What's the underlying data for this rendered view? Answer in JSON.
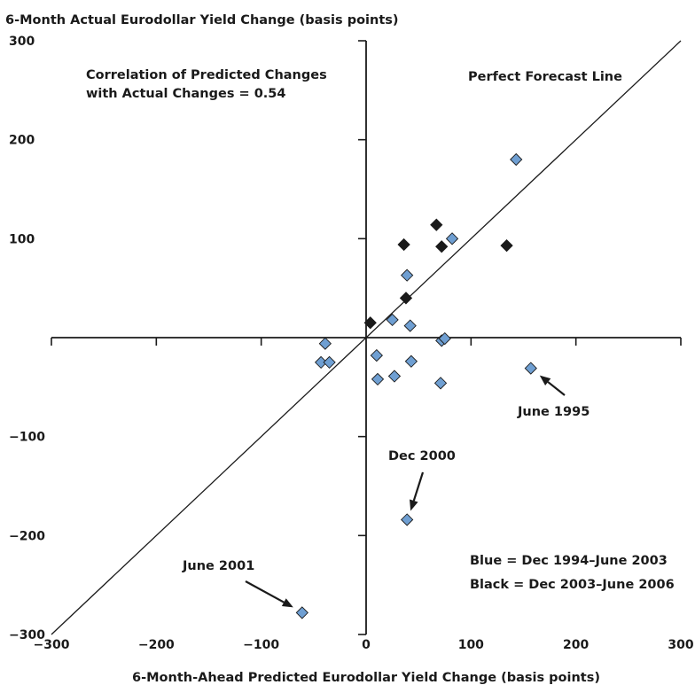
{
  "chart_data": {
    "type": "scatter",
    "title": "",
    "ylabel": "6-Month Actual Eurodollar Yield Change (basis points)",
    "xlabel": "6-Month-Ahead Predicted Eurodollar Yield Change (basis points)",
    "xlim": [
      -300,
      300
    ],
    "ylim": [
      -300,
      300
    ],
    "x_ticks": [
      "−300",
      "−200",
      "−100",
      "0",
      "100",
      "200",
      "300"
    ],
    "y_ticks": [
      "300",
      "200",
      "100",
      "−100",
      "−200",
      "−300"
    ],
    "grid": false,
    "reference_line": {
      "label": "Perfect Forecast Line",
      "slope": 1,
      "intercept": 0
    },
    "annotations": {
      "correlation_line1": "Correlation of Predicted Changes",
      "correlation_line2": "with Actual Changes = 0.54",
      "legend_blue": "Blue = Dec 1994–June 2003",
      "legend_black": "Black = Dec 2003–June 2006",
      "june_1995": "June 1995",
      "dec_2000": "Dec 2000",
      "june_2001": "June 2001"
    },
    "series": [
      {
        "color": "#6f9fd2",
        "points": [
          [
            143,
            180
          ],
          [
            82,
            100
          ],
          [
            39,
            63
          ],
          [
            25,
            18
          ],
          [
            42,
            12
          ],
          [
            72,
            -3
          ],
          [
            75,
            -1
          ],
          [
            -39,
            -6
          ],
          [
            -43,
            -25
          ],
          [
            -35,
            -25
          ],
          [
            10,
            -18
          ],
          [
            11,
            -42
          ],
          [
            27,
            -39
          ],
          [
            43,
            -24
          ],
          [
            71,
            -46
          ],
          [
            157,
            -31
          ],
          [
            39,
            -184
          ],
          [
            -61,
            -278
          ]
        ]
      },
      {
        "color": "#1a1a1a",
        "points": [
          [
            36,
            94
          ],
          [
            67,
            114
          ],
          [
            72,
            92
          ],
          [
            134,
            93
          ],
          [
            38,
            40
          ],
          [
            4,
            15
          ]
        ]
      }
    ]
  }
}
